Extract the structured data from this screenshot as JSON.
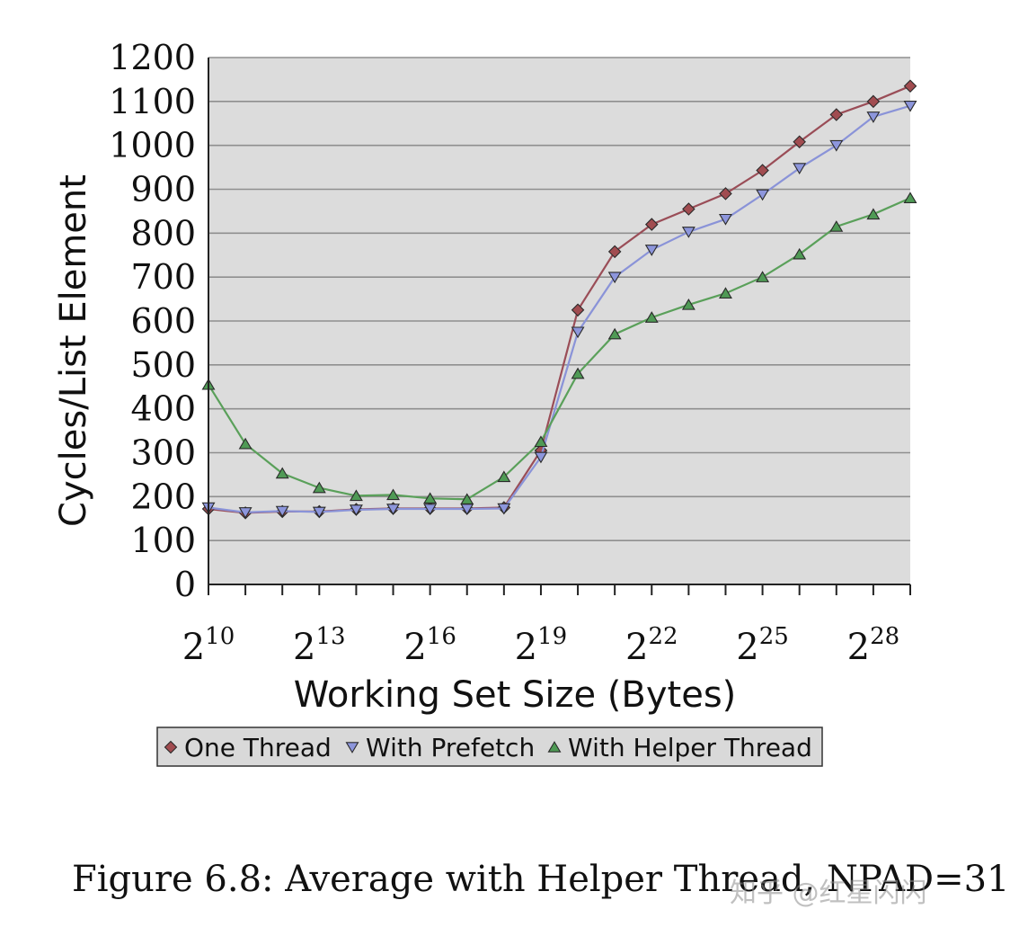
{
  "chart_data": {
    "type": "line",
    "ylabel": "Cycles/List Element",
    "xlabel": "Working Set Size (Bytes)",
    "ylim": [
      0,
      1200
    ],
    "y_ticks": [
      "0",
      "100",
      "200",
      "300",
      "400",
      "500",
      "600",
      "700",
      "800",
      "900",
      "1000",
      "1100",
      "1200"
    ],
    "x_exponents": [
      10,
      11,
      12,
      13,
      14,
      15,
      16,
      17,
      18,
      19,
      20,
      21,
      22,
      23,
      24,
      25,
      26,
      27,
      28,
      29
    ],
    "x_tick_labels": [
      {
        "exp": 10,
        "base": "2",
        "sup": "10"
      },
      {
        "exp": 13,
        "base": "2",
        "sup": "13"
      },
      {
        "exp": 16,
        "base": "2",
        "sup": "16"
      },
      {
        "exp": 19,
        "base": "2",
        "sup": "19"
      },
      {
        "exp": 22,
        "base": "2",
        "sup": "22"
      },
      {
        "exp": 25,
        "base": "2",
        "sup": "25"
      },
      {
        "exp": 28,
        "base": "2",
        "sup": "28"
      }
    ],
    "x_scale": "log2",
    "grid": "horizontal",
    "plot_background": "#dcdcdc",
    "legend_position": "bottom",
    "series": [
      {
        "name": "One Thread",
        "marker": "diamond",
        "line_color": "#9a4d57",
        "marker_fill": "#a14c50",
        "values": [
          172,
          163,
          166,
          166,
          171,
          173,
          173,
          173,
          175,
          305,
          625,
          758,
          820,
          855,
          890,
          943,
          1008,
          1070,
          1100,
          1135
        ]
      },
      {
        "name": "With Prefetch",
        "marker": "triangle-down",
        "line_color": "#8a93d8",
        "marker_fill": "#8d96dc",
        "values": [
          175,
          164,
          167,
          165,
          170,
          172,
          172,
          172,
          173,
          290,
          575,
          700,
          762,
          803,
          832,
          888,
          948,
          1000,
          1065,
          1090
        ]
      },
      {
        "name": "With Helper Thread",
        "marker": "triangle-up",
        "line_color": "#5aa05a",
        "marker_fill": "#4f9a55",
        "values": [
          455,
          320,
          253,
          220,
          202,
          204,
          196,
          194,
          245,
          325,
          480,
          570,
          608,
          637,
          663,
          700,
          752,
          815,
          843,
          880
        ]
      }
    ]
  },
  "caption": "Figure 6.8: Average with Helper Thread, NPAD=31",
  "watermark": "知乎 @红星闪闪"
}
